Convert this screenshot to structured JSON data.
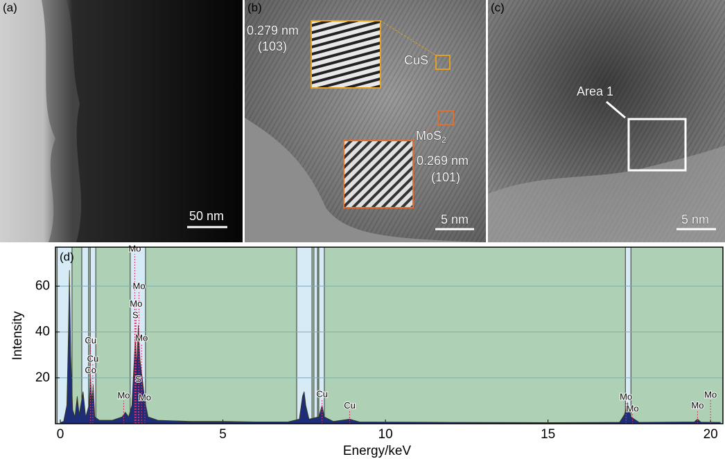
{
  "panels": [
    {
      "label": "(a)",
      "scale": "50 nm"
    },
    {
      "label": "(b)",
      "scale": "5 nm",
      "d1": "0.279 nm",
      "h1": "(103)",
      "p1": "CuS",
      "p2": {
        "text": "MoS",
        "subscript": "2"
      },
      "d2": "0.269 nm",
      "h2": "(101)"
    },
    {
      "label": "(c)",
      "scale": "5 nm",
      "area": "Area 1"
    }
  ],
  "chart_data": {
    "type": "area",
    "panel_label": "(d)",
    "xlabel": "Energy/keV",
    "ylabel": "Intensity",
    "xlim": [
      -0.15,
      20.38
    ],
    "ylim": [
      0,
      77
    ],
    "xticks": [
      0,
      5,
      10,
      15,
      20
    ],
    "yticks": [
      20,
      40,
      60
    ],
    "grid": true,
    "background": "#aed0b4",
    "region_color": "#d6ebf5",
    "regions": [
      [
        -0.1,
        0.36
      ],
      [
        0.66,
        0.87
      ],
      [
        0.92,
        1.09
      ],
      [
        2.15,
        2.62
      ],
      [
        7.27,
        7.74
      ],
      [
        7.8,
        7.91
      ],
      [
        7.95,
        8.12
      ],
      [
        17.38,
        17.55
      ]
    ],
    "x": [
      0,
      0.1,
      0.2,
      0.25,
      0.28,
      0.32,
      0.38,
      0.45,
      0.52,
      0.58,
      0.7,
      0.78,
      0.88,
      0.93,
      0.97,
      1.01,
      1.06,
      1.2,
      1.6,
      1.9,
      2.0,
      2.1,
      2.2,
      2.28,
      2.31,
      2.35,
      2.4,
      2.45,
      2.52,
      2.6,
      2.7,
      3.0,
      4,
      5,
      6,
      7,
      7.35,
      7.45,
      7.5,
      7.55,
      7.65,
      7.95,
      8.05,
      8.12,
      8.4,
      8.9,
      9.2,
      12,
      15,
      17.2,
      17.35,
      17.45,
      17.55,
      17.8,
      19.5,
      19.6,
      19.7,
      20.3
    ],
    "series": [
      {
        "color": "#1e2d78",
        "values": [
          0.5,
          1,
          8,
          40,
          67,
          30,
          6,
          3,
          12,
          4,
          14,
          3,
          8,
          20,
          10,
          17,
          3,
          1.5,
          1.5,
          3,
          5,
          3,
          8,
          30,
          38,
          25,
          43,
          28,
          20,
          10,
          3,
          1.5,
          1,
          1,
          0.8,
          0.8,
          2,
          12,
          14,
          8,
          2,
          3,
          8,
          3,
          1,
          2,
          0.8,
          0.6,
          0.5,
          0.6,
          4,
          9,
          3,
          0.6,
          0.8,
          2,
          0.7,
          0.6
        ]
      }
    ],
    "annotations": [
      {
        "text": "Mo",
        "x": 2.29,
        "y": 74
      },
      {
        "text": "Mo",
        "x": 2.42,
        "y": 57.6
      },
      {
        "text": "Mo",
        "x": 2.33,
        "y": 50
      },
      {
        "text": "S",
        "x": 2.31,
        "y": 45
      },
      {
        "text": "Mo",
        "x": 2.5,
        "y": 35
      },
      {
        "text": "S",
        "x": 2.4,
        "y": 17
      },
      {
        "text": "Mo",
        "x": 2.6,
        "y": 9
      },
      {
        "text": "Mo",
        "x": 1.95,
        "y": 10
      },
      {
        "text": "Cu",
        "x": 0.93,
        "y": 34
      },
      {
        "text": "Cu",
        "x": 1.0,
        "y": 26
      },
      {
        "text": "Co",
        "x": 0.93,
        "y": 21
      },
      {
        "text": "Cu",
        "x": 8.05,
        "y": 10.6
      },
      {
        "text": "Cu",
        "x": 8.9,
        "y": 5.5
      },
      {
        "text": "Mo",
        "x": 17.4,
        "y": 9.4
      },
      {
        "text": "Mo",
        "x": 17.6,
        "y": 4.2
      },
      {
        "text": "Mo",
        "x": 19.6,
        "y": 5.5
      },
      {
        "text": "Mo",
        "x": 20.0,
        "y": 10.3
      }
    ]
  }
}
